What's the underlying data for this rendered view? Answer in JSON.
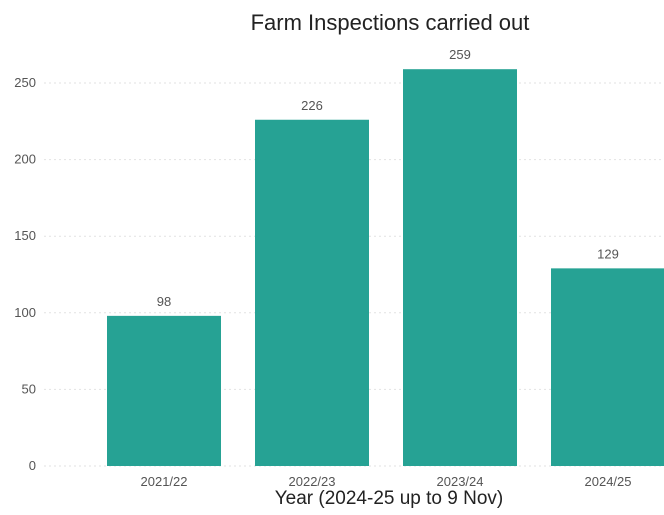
{
  "chart_data": {
    "type": "bar",
    "title": "Farm Inspections carried out",
    "xlabel": "Year (2024-25 up to 9 Nov)",
    "ylabel": "",
    "categories": [
      "2021/22",
      "2022/23",
      "2023/24",
      "2024/25"
    ],
    "values": [
      98,
      226,
      259,
      129
    ],
    "data_labels": [
      "98",
      "226",
      "259",
      "129"
    ],
    "ylim": [
      0,
      265
    ],
    "yticks": [
      0,
      50,
      100,
      150,
      200,
      250
    ],
    "ytick_labels": [
      "0",
      "50",
      "100",
      "150",
      "200",
      "250"
    ],
    "grid": true,
    "legend": "none",
    "bar_color": "#26a294"
  }
}
